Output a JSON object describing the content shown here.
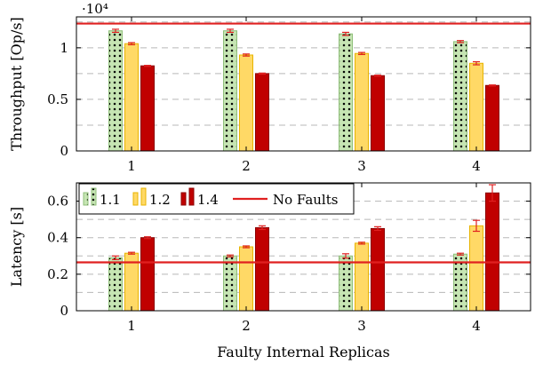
{
  "chart_data": [
    {
      "id": "throughput",
      "type": "bar",
      "ylabel": "Throughput [Op/s]",
      "scale_label": "·10⁴",
      "categories": [
        "1",
        "2",
        "3",
        "4"
      ],
      "ylim": [
        0,
        13000
      ],
      "yticks": [
        0,
        5000,
        10000
      ],
      "ytick_labels": [
        "0",
        "0.5",
        "1"
      ],
      "grid": "horizontal dashed",
      "series": [
        {
          "name": "1.1",
          "color": "#c6e5b3",
          "pattern": "dots",
          "values": [
            11650,
            11650,
            11350,
            10600
          ],
          "errors": [
            150,
            150,
            150,
            100
          ]
        },
        {
          "name": "1.2",
          "color": "#ffd966",
          "values": [
            10400,
            9300,
            9450,
            8500
          ],
          "errors": [
            100,
            100,
            100,
            150
          ]
        },
        {
          "name": "1.4",
          "color": "#c00000",
          "values": [
            8250,
            7500,
            7300,
            6350
          ],
          "errors": [
            50,
            50,
            50,
            50
          ]
        }
      ],
      "reference": {
        "name": "No Faults",
        "value": 12350,
        "color": "#e02020"
      }
    },
    {
      "id": "latency",
      "type": "bar",
      "ylabel": "Latency [s]",
      "xlabel": "Faulty Internal Replicas",
      "categories": [
        "1",
        "2",
        "3",
        "4"
      ],
      "ylim": [
        0,
        0.7
      ],
      "yticks": [
        0,
        0.2,
        0.4,
        0.6
      ],
      "ytick_labels": [
        "0",
        "0.2",
        "0.4",
        "0.6"
      ],
      "grid": "horizontal dashed",
      "series": [
        {
          "name": "1.1",
          "color": "#c6e5b3",
          "pattern": "dots",
          "values": [
            0.29,
            0.3,
            0.3,
            0.31
          ],
          "errors": [
            0.01,
            0.005,
            0.012,
            0.005
          ]
        },
        {
          "name": "1.2",
          "color": "#ffd966",
          "values": [
            0.315,
            0.35,
            0.37,
            0.465
          ],
          "errors": [
            0.005,
            0.005,
            0.005,
            0.03
          ]
        },
        {
          "name": "1.4",
          "color": "#c00000",
          "values": [
            0.4,
            0.455,
            0.45,
            0.645
          ],
          "errors": [
            0.005,
            0.01,
            0.01,
            0.045
          ]
        }
      ],
      "reference": {
        "name": "No Faults",
        "value": 0.265,
        "color": "#e02020"
      },
      "legend": {
        "position": "top-left",
        "entries": [
          {
            "label": "1.1",
            "series": 0
          },
          {
            "label": "1.2",
            "series": 1
          },
          {
            "label": "1.4",
            "series": 2
          },
          {
            "label": "No Faults",
            "reference": true
          }
        ]
      }
    }
  ]
}
